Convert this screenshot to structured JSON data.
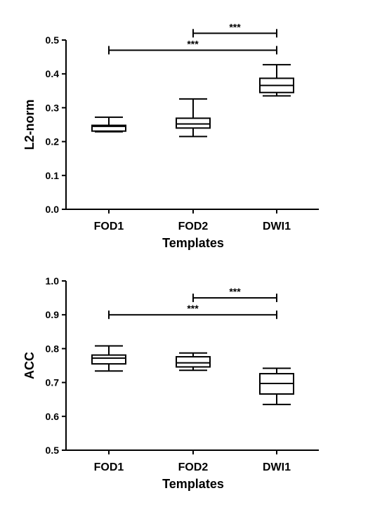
{
  "chart_data": [
    {
      "type": "box",
      "xlabel": "Templates",
      "ylabel": "L2-norm",
      "ylim": [
        0.0,
        0.5
      ],
      "yticks": [
        "0.0",
        "0.1",
        "0.2",
        "0.3",
        "0.4",
        "0.5"
      ],
      "categories": [
        "FOD1",
        "FOD2",
        "DWI1"
      ],
      "boxes": [
        {
          "min": 0.229,
          "q1": 0.231,
          "median": 0.245,
          "q3": 0.248,
          "max": 0.272
        },
        {
          "min": 0.215,
          "q1": 0.24,
          "median": 0.252,
          "q3": 0.269,
          "max": 0.326
        },
        {
          "min": 0.335,
          "q1": 0.345,
          "median": 0.366,
          "q3": 0.387,
          "max": 0.427
        }
      ],
      "significance": [
        {
          "from": "FOD2",
          "to": "DWI1",
          "y": 0.52,
          "label": "***"
        },
        {
          "from": "FOD1",
          "to": "DWI1",
          "y": 0.47,
          "label": "***"
        }
      ],
      "grid": false,
      "legend": "none"
    },
    {
      "type": "box",
      "xlabel": "Templates",
      "ylabel": "ACC",
      "ylim": [
        0.5,
        1.0
      ],
      "yticks": [
        "0.5",
        "0.6",
        "0.7",
        "0.8",
        "0.9",
        "1.0"
      ],
      "categories": [
        "FOD1",
        "FOD2",
        "DWI1"
      ],
      "boxes": [
        {
          "min": 0.734,
          "q1": 0.755,
          "median": 0.772,
          "q3": 0.781,
          "max": 0.808
        },
        {
          "min": 0.736,
          "q1": 0.746,
          "median": 0.758,
          "q3": 0.776,
          "max": 0.787
        },
        {
          "min": 0.635,
          "q1": 0.666,
          "median": 0.697,
          "q3": 0.726,
          "max": 0.742
        }
      ],
      "significance": [
        {
          "from": "FOD2",
          "to": "DWI1",
          "y": 0.95,
          "label": "***"
        },
        {
          "from": "FOD1",
          "to": "DWI1",
          "y": 0.9,
          "label": "***"
        }
      ],
      "grid": false,
      "legend": "none"
    }
  ]
}
